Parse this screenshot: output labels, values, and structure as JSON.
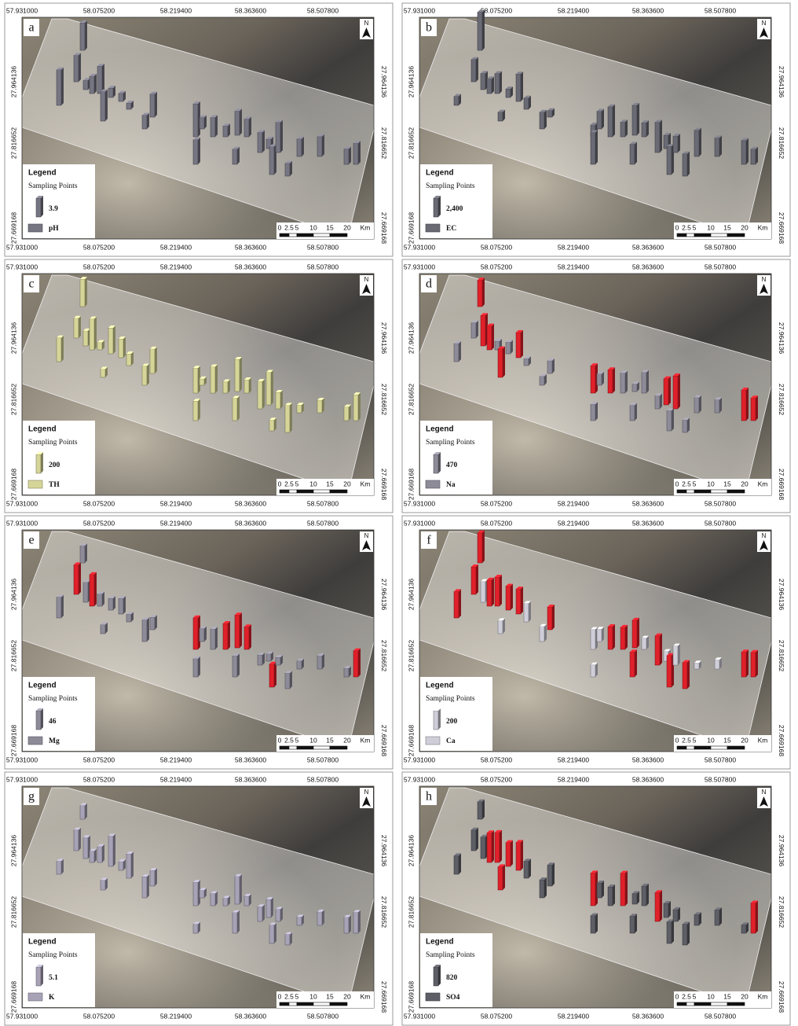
{
  "x_labels": [
    "57.931000",
    "58.075200",
    "58.219400",
    "58.363600",
    "58.507800"
  ],
  "y_labels": [
    "27.964136",
    "27.816652",
    "27.669168"
  ],
  "scale_labels": [
    "0",
    "2.5",
    "5",
    "10",
    "15",
    "20",
    "Km"
  ],
  "north": "N",
  "legend_title": "Legend",
  "legend_subtitle": "Sampling Points",
  "panels": [
    {
      "letter": "a",
      "legend_value": "3.9",
      "parameter": "pH",
      "color": "#767582"
    },
    {
      "letter": "b",
      "legend_value": "2,400",
      "parameter": "EC",
      "color": "#6a6a74"
    },
    {
      "letter": "c",
      "legend_value": "200",
      "parameter": "TH",
      "color": "#d6d598"
    },
    {
      "letter": "d",
      "legend_value": "470",
      "parameter": "Na",
      "color": "#8e8b99",
      "highlight_color": "#e0202a"
    },
    {
      "letter": "e",
      "legend_value": "46",
      "parameter": "Mg",
      "color": "#8e8b99",
      "highlight_color": "#e0202a"
    },
    {
      "letter": "f",
      "legend_value": "200",
      "parameter": "Ca",
      "color": "#cfcdd8",
      "highlight_color": "#e0202a"
    },
    {
      "letter": "g",
      "legend_value": "5.1",
      "parameter": "K",
      "color": "#a7a2b6"
    },
    {
      "letter": "h",
      "legend_value": "820",
      "parameter": "SO4",
      "color": "#5e5e66",
      "highlight_color": "#e0202a"
    }
  ]
}
